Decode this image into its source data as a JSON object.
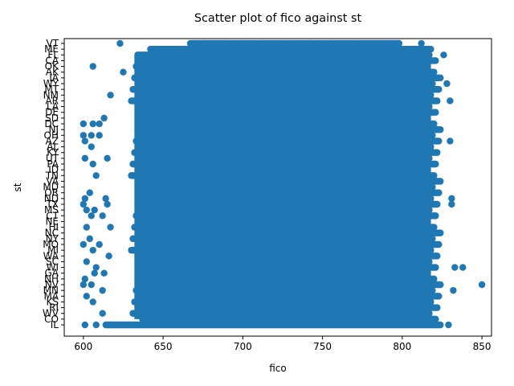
{
  "chart_data": {
    "type": "scatter",
    "title": "Scatter plot of fico against st",
    "xlabel": "fico",
    "ylabel": "st",
    "xlim": [
      588,
      856
    ],
    "x_ticks": [
      600,
      650,
      700,
      750,
      800,
      850
    ],
    "categories": [
      "IL",
      "CO",
      "WV",
      "RI",
      "KS",
      "MA",
      "MN",
      "NV",
      "NH",
      "GA",
      "WI",
      "SC",
      "WA",
      "MI",
      "MO",
      "NY",
      "NC",
      "HI",
      "NE",
      "CT",
      "MS",
      "TX",
      "ND",
      "OR",
      "MD",
      "VA",
      "TN",
      "ID",
      "PA",
      "UT",
      "KY",
      "AL",
      "AZ",
      "OH",
      "NJ",
      "DC",
      "SD",
      "DE",
      "LA",
      "AR",
      "NM",
      "MT",
      "WY",
      "IA",
      "AK",
      "OK",
      "CA",
      "FL",
      "ME",
      "VT"
    ],
    "color": "#1f77b4",
    "grid": false,
    "legend": "none",
    "series": [
      {
        "points": [
          {
            "x": 623,
            "y": "VT"
          },
          {
            "x": 660,
            "y": "FL"
          },
          {
            "x": 669,
            "y": "FL"
          },
          {
            "x": 606,
            "y": "OK"
          },
          {
            "x": 625,
            "y": "AK"
          },
          {
            "x": 617,
            "y": "NM"
          },
          {
            "x": 600,
            "y": "DC"
          },
          {
            "x": 606,
            "y": "DC"
          },
          {
            "x": 610,
            "y": "DC"
          },
          {
            "x": 613,
            "y": "SD"
          },
          {
            "x": 615,
            "y": "UT"
          },
          {
            "x": 600,
            "y": "OH"
          },
          {
            "x": 605,
            "y": "OH"
          },
          {
            "x": 610,
            "y": "OH"
          },
          {
            "x": 601,
            "y": "AZ"
          },
          {
            "x": 605,
            "y": "AL"
          },
          {
            "x": 608,
            "y": "TN"
          },
          {
            "x": 606,
            "y": "PA"
          },
          {
            "x": 601,
            "y": "UT"
          },
          {
            "x": 600,
            "y": "TX"
          },
          {
            "x": 604,
            "y": "OR"
          },
          {
            "x": 605,
            "y": "CT"
          },
          {
            "x": 612,
            "y": "CT"
          },
          {
            "x": 602,
            "y": "MS"
          },
          {
            "x": 615,
            "y": "TX"
          },
          {
            "x": 601,
            "y": "ND"
          },
          {
            "x": 607,
            "y": "MS"
          },
          {
            "x": 614,
            "y": "ND"
          },
          {
            "x": 602,
            "y": "HI"
          },
          {
            "x": 617,
            "y": "HI"
          },
          {
            "x": 608,
            "y": "WI"
          },
          {
            "x": 604,
            "y": "NY"
          },
          {
            "x": 600,
            "y": "MO"
          },
          {
            "x": 610,
            "y": "MO"
          },
          {
            "x": 606,
            "y": "MI"
          },
          {
            "x": 616,
            "y": "WA"
          },
          {
            "x": 602,
            "y": "SC"
          },
          {
            "x": 607,
            "y": "GA"
          },
          {
            "x": 613,
            "y": "GA"
          },
          {
            "x": 601,
            "y": "NH"
          },
          {
            "x": 605,
            "y": "NV"
          },
          {
            "x": 600,
            "y": "NV"
          },
          {
            "x": 612,
            "y": "MN"
          },
          {
            "x": 602,
            "y": "MA"
          },
          {
            "x": 606,
            "y": "KS"
          },
          {
            "x": 601,
            "y": "IL"
          },
          {
            "x": 608,
            "y": "IL"
          },
          {
            "x": 612,
            "y": "WV"
          },
          {
            "x": 833,
            "y": "WI"
          },
          {
            "x": 838,
            "y": "WI"
          },
          {
            "x": 850,
            "y": "NV"
          },
          {
            "x": 832,
            "y": "MN"
          },
          {
            "x": 831,
            "y": "TX"
          },
          {
            "x": 831,
            "y": "ND"
          },
          {
            "x": 830,
            "y": "AZ"
          },
          {
            "x": 830,
            "y": "AR"
          },
          {
            "x": 828,
            "y": "WY"
          },
          {
            "x": 829,
            "y": "IL"
          },
          {
            "x": 826,
            "y": "FL"
          },
          {
            "x": 798,
            "y": "VT"
          },
          {
            "x": 812,
            "y": "VT"
          },
          {
            "x": 770,
            "y": "VT"
          },
          {
            "x": 755,
            "y": "VT"
          },
          {
            "x": 742,
            "y": "VT"
          },
          {
            "x": 712,
            "y": "VT"
          },
          {
            "x": 700,
            "y": "VT"
          },
          {
            "x": 676,
            "y": "VT"
          },
          {
            "x": 690,
            "y": "VT"
          },
          {
            "x": 728,
            "y": "VT"
          }
        ]
      }
    ]
  }
}
